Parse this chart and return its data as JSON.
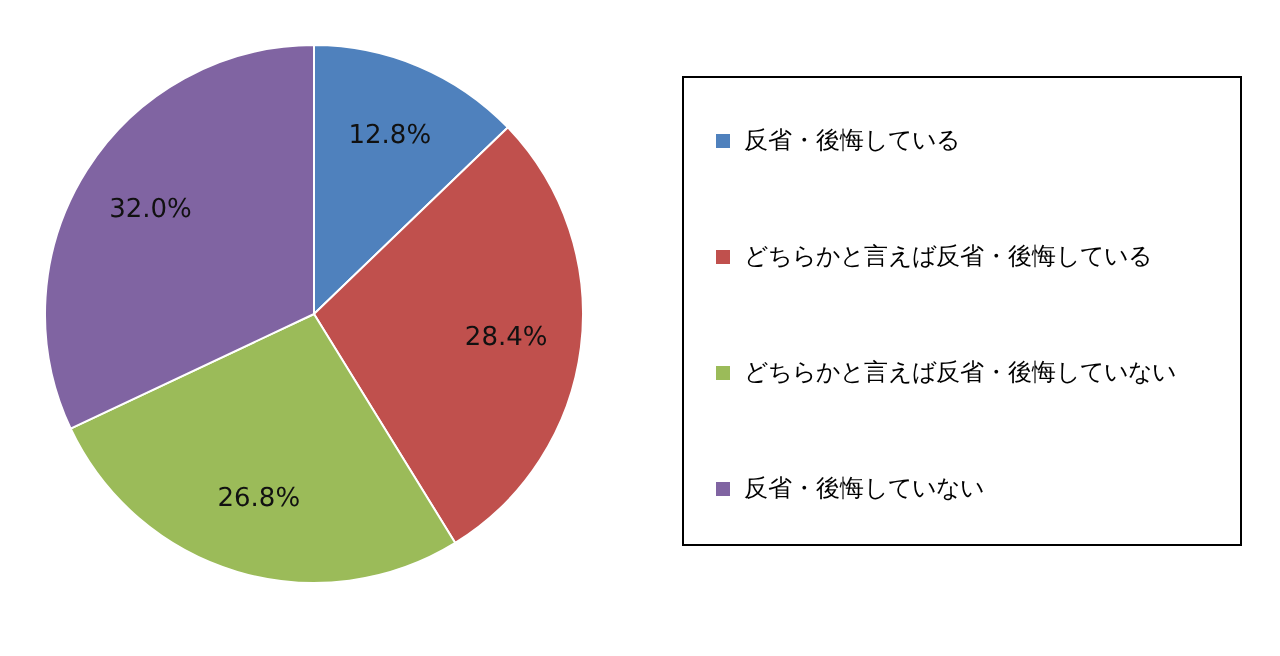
{
  "chart_data": {
    "type": "pie",
    "categories": [
      "反省・後悔している",
      "どちらかと言えば反省・後悔している",
      "どちらかと言えば反省・後悔していない",
      "反省・後悔していない"
    ],
    "values": [
      12.8,
      28.4,
      26.8,
      32.0
    ],
    "colors": [
      "#4f81bd",
      "#c0504d",
      "#9bbb59",
      "#8064a2"
    ],
    "value_labels": [
      "12.8%",
      "28.4%",
      "26.8%",
      "32.0%"
    ],
    "legend": "right"
  }
}
